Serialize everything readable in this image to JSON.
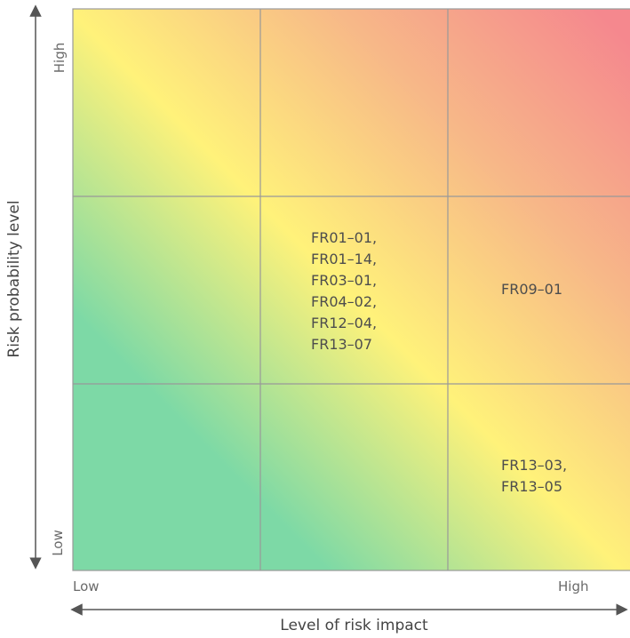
{
  "axes": {
    "x_title": "Level of risk impact",
    "y_title": "Risk probability level",
    "x_low": "Low",
    "x_high": "High",
    "y_low": "Low",
    "y_high": "High"
  },
  "colors": {
    "low": "#7dd9a6",
    "medium": "#fff27a",
    "high": "#f5888e",
    "grid": "#999999",
    "arrow": "#555555"
  },
  "matrix": {
    "rows": 3,
    "cols": 3,
    "cells": [
      {
        "impact": "medium",
        "probability": "medium",
        "lines": [
          "FR01–01,",
          "FR01–14,",
          "FR03–01,",
          "FR04–02,",
          "FR12–04,",
          "FR13–07"
        ]
      },
      {
        "impact": "high",
        "probability": "medium",
        "lines": [
          "FR09–01"
        ]
      },
      {
        "impact": "high",
        "probability": "low",
        "lines": [
          "FR13–03,",
          "FR13–05"
        ]
      }
    ]
  }
}
